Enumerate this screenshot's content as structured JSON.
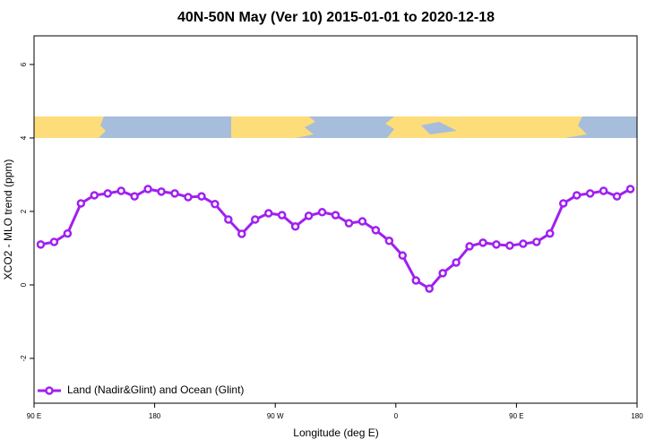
{
  "chart_data": {
    "type": "line",
    "title": "40N-50N May (Ver 10)   2015-01-01 to 2020-12-18",
    "x_label": "Longitude (deg E)",
    "y_label": "XCO2 - MLO trend (ppm)",
    "xlim": [
      90,
      540
    ],
    "ylim": [
      -3.22,
      6.78
    ],
    "xticks": [
      {
        "value": 90,
        "label": "90 E"
      },
      {
        "value": 180,
        "label": "180"
      },
      {
        "value": 270,
        "label": "90 W"
      },
      {
        "value": 360,
        "label": "0"
      },
      {
        "value": 450,
        "label": "90 E"
      },
      {
        "value": 540,
        "label": "180"
      }
    ],
    "yticks": [
      -2,
      0,
      2,
      4,
      6
    ],
    "legend": "bottom-left",
    "x": [
      95,
      105,
      115,
      125,
      135,
      145,
      155,
      165,
      175,
      185,
      195,
      205,
      215,
      225,
      235,
      245,
      255,
      265,
      275,
      285,
      295,
      305,
      315,
      325,
      335,
      345,
      355,
      365,
      375,
      385,
      395,
      405,
      415,
      425,
      435,
      445,
      455,
      465,
      475,
      485,
      495,
      505,
      515,
      525,
      535
    ],
    "series": [
      {
        "name": "Land (Nadir&Glint) and Ocean (Glint)",
        "color": "#a020f0",
        "values": [
          1.1,
          1.17,
          1.4,
          2.22,
          2.44,
          2.49,
          2.56,
          2.41,
          2.61,
          2.54,
          2.49,
          2.39,
          2.41,
          2.2,
          1.78,
          1.39,
          1.78,
          1.95,
          1.9,
          1.59,
          1.88,
          1.98,
          1.9,
          1.68,
          1.73,
          1.49,
          1.2,
          0.8,
          0.12,
          -0.1,
          0.32,
          0.61,
          1.05,
          1.15,
          1.1,
          1.07,
          1.12,
          1.17,
          1.4,
          2.22,
          2.44,
          2.49,
          2.56,
          2.41,
          2.61
        ]
      }
    ]
  }
}
